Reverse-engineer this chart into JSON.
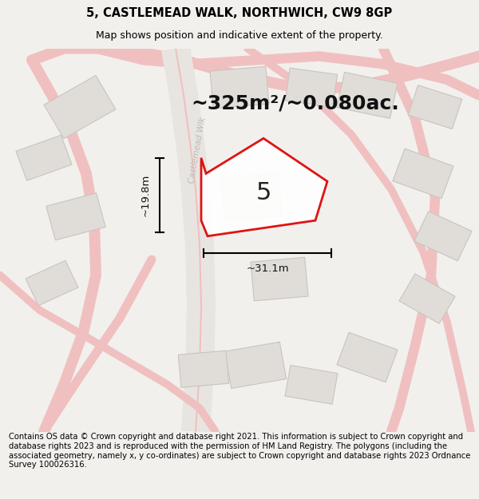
{
  "title": "5, CASTLEMEAD WALK, NORTHWICH, CW9 8GP",
  "subtitle": "Map shows position and indicative extent of the property.",
  "area_label": "~325m²/~0.080ac.",
  "number_label": "5",
  "width_label": "~31.1m",
  "height_label": "~19.8m",
  "road_label": "Castlemead Wlk",
  "footer": "Contains OS data © Crown copyright and database right 2021. This information is subject to Crown copyright and database rights 2023 and is reproduced with the permission of HM Land Registry. The polygons (including the associated geometry, namely x, y co-ordinates) are subject to Crown copyright and database rights 2023 Ordnance Survey 100026316.",
  "bg_color": "#f2f0ed",
  "map_bg": "#f2f0ed",
  "red_line_color": "#dd0000",
  "building_fill": "#e0ddd9",
  "building_edge": "#c8c5c0",
  "road_fill": "#e8e5e0",
  "pink_road": "#f0c0c0",
  "title_fontsize": 10.5,
  "subtitle_fontsize": 9,
  "footer_fontsize": 7.2,
  "area_fontsize": 18,
  "number_fontsize": 22,
  "dim_fontsize": 9.5,
  "road_label_fontsize": 7.5
}
